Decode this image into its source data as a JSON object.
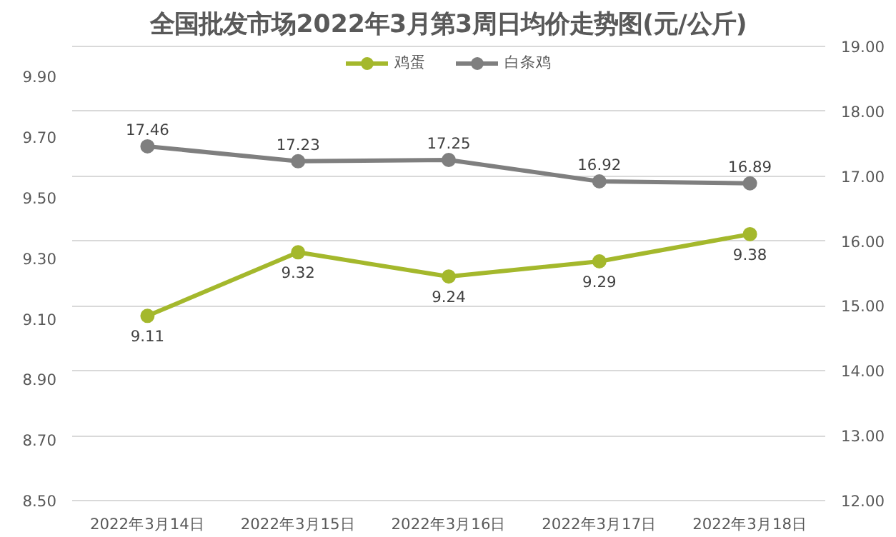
{
  "chart_data": {
    "type": "line",
    "title": "全国批发市场2022年3月第3周日均价走势图(元/公斤)",
    "categories": [
      "2022年3月14日",
      "2022年3月15日",
      "2022年3月16日",
      "2022年3月17日",
      "2022年3月18日"
    ],
    "series": [
      {
        "name": "鸡蛋",
        "color": "#a4b82c",
        "values": [
          9.11,
          9.32,
          9.24,
          9.29,
          9.38
        ]
      },
      {
        "name": "白条鸡",
        "color": "#7f7f7f",
        "values": [
          17.46,
          17.23,
          17.25,
          16.92,
          16.89
        ],
        "axis": "y2"
      }
    ],
    "ylim": [
      8.5,
      10.0
    ],
    "yticks": [
      {
        "value": 8.5,
        "label": "8.50"
      },
      {
        "value": 8.7,
        "label": "8.70"
      },
      {
        "value": 8.9,
        "label": "8.90"
      },
      {
        "value": 9.1,
        "label": "9.10"
      },
      {
        "value": 9.3,
        "label": "9.30"
      },
      {
        "value": 9.5,
        "label": "9.50"
      },
      {
        "value": 9.7,
        "label": "9.70"
      },
      {
        "value": 9.9,
        "label": "9.90"
      }
    ],
    "y2lim": [
      12,
      19
    ],
    "y2ticks": [
      {
        "value": 12,
        "label": "12.00"
      },
      {
        "value": 13,
        "label": "13.00"
      },
      {
        "value": 14,
        "label": "14.00"
      },
      {
        "value": 15,
        "label": "15.00"
      },
      {
        "value": 16,
        "label": "16.00"
      },
      {
        "value": 17,
        "label": "17.00"
      },
      {
        "value": 18,
        "label": "18.00"
      },
      {
        "value": 19,
        "label": "19.00"
      }
    ],
    "grid": "y",
    "legend": "top",
    "marker": "circle",
    "line_style": "solid",
    "data_labels": true
  }
}
